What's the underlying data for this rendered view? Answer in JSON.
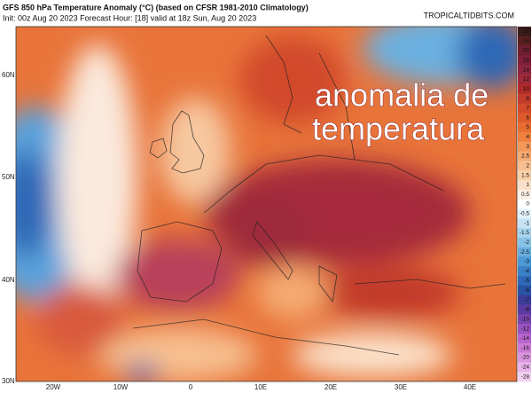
{
  "header": {
    "title": "GFS 850 hPa Temperature Anomaly (°C) (based on CFSR 1981-2010 Climatology)",
    "subtitle": "Init: 00z Aug 20 2023   Forecast Hour: [18]   valid at 18z Sun, Aug 20 2023",
    "watermark": "TROPICALTIDBITS.COM"
  },
  "overlay": {
    "line1": "anomalia  de",
    "line2": "temperatura"
  },
  "map": {
    "lat_labels": [
      "60N",
      "50N",
      "40N",
      "30N"
    ],
    "lon_labels": [
      "20W",
      "10W",
      "0",
      "10E",
      "20E",
      "30E",
      "40E"
    ]
  },
  "colorbar": [
    {
      "label": "28",
      "color": "#3a1a1a"
    },
    {
      "label": "24",
      "color": "#5a2020"
    },
    {
      "label": "20",
      "color": "#6e1e2e"
    },
    {
      "label": "16",
      "color": "#7f1f3a"
    },
    {
      "label": "14",
      "color": "#8e2440"
    },
    {
      "label": "12",
      "color": "#9e2a3a"
    },
    {
      "label": "10",
      "color": "#b02a2a"
    },
    {
      "label": "8",
      "color": "#c23a2a"
    },
    {
      "label": "7",
      "color": "#d24a2a"
    },
    {
      "label": "6",
      "color": "#de5a2c"
    },
    {
      "label": "5",
      "color": "#e86c30"
    },
    {
      "label": "4",
      "color": "#ef8040"
    },
    {
      "label": "3",
      "color": "#f3985a"
    },
    {
      "label": "2.5",
      "color": "#f5ab72"
    },
    {
      "label": "2",
      "color": "#f7bf90"
    },
    {
      "label": "1.5",
      "color": "#f8d0aa"
    },
    {
      "label": "1",
      "color": "#fae0c8"
    },
    {
      "label": "0.5",
      "color": "#fcefe4"
    },
    {
      "label": "0",
      "color": "#ffffff"
    },
    {
      "label": "-0.5",
      "color": "#e4f2fa"
    },
    {
      "label": "-1",
      "color": "#c8e4f4"
    },
    {
      "label": "-1.5",
      "color": "#a8d4ee"
    },
    {
      "label": "-2",
      "color": "#88c2e6"
    },
    {
      "label": "-2.5",
      "color": "#68aede"
    },
    {
      "label": "-3",
      "color": "#4c98d4"
    },
    {
      "label": "-4",
      "color": "#3a80c6"
    },
    {
      "label": "-5",
      "color": "#2e68b6"
    },
    {
      "label": "-6",
      "color": "#2a52a2"
    },
    {
      "label": "-7",
      "color": "#3a3c96"
    },
    {
      "label": "-8",
      "color": "#5a3a9e"
    },
    {
      "label": "-10",
      "color": "#7a44ae"
    },
    {
      "label": "-12",
      "color": "#9a52be"
    },
    {
      "label": "-14",
      "color": "#b664cc"
    },
    {
      "label": "-16",
      "color": "#cc7ad6"
    },
    {
      "label": "-20",
      "color": "#dc96e0"
    },
    {
      "label": "-24",
      "color": "#e8b4ea"
    },
    {
      "label": "-28",
      "color": "#f2d2f2"
    }
  ]
}
